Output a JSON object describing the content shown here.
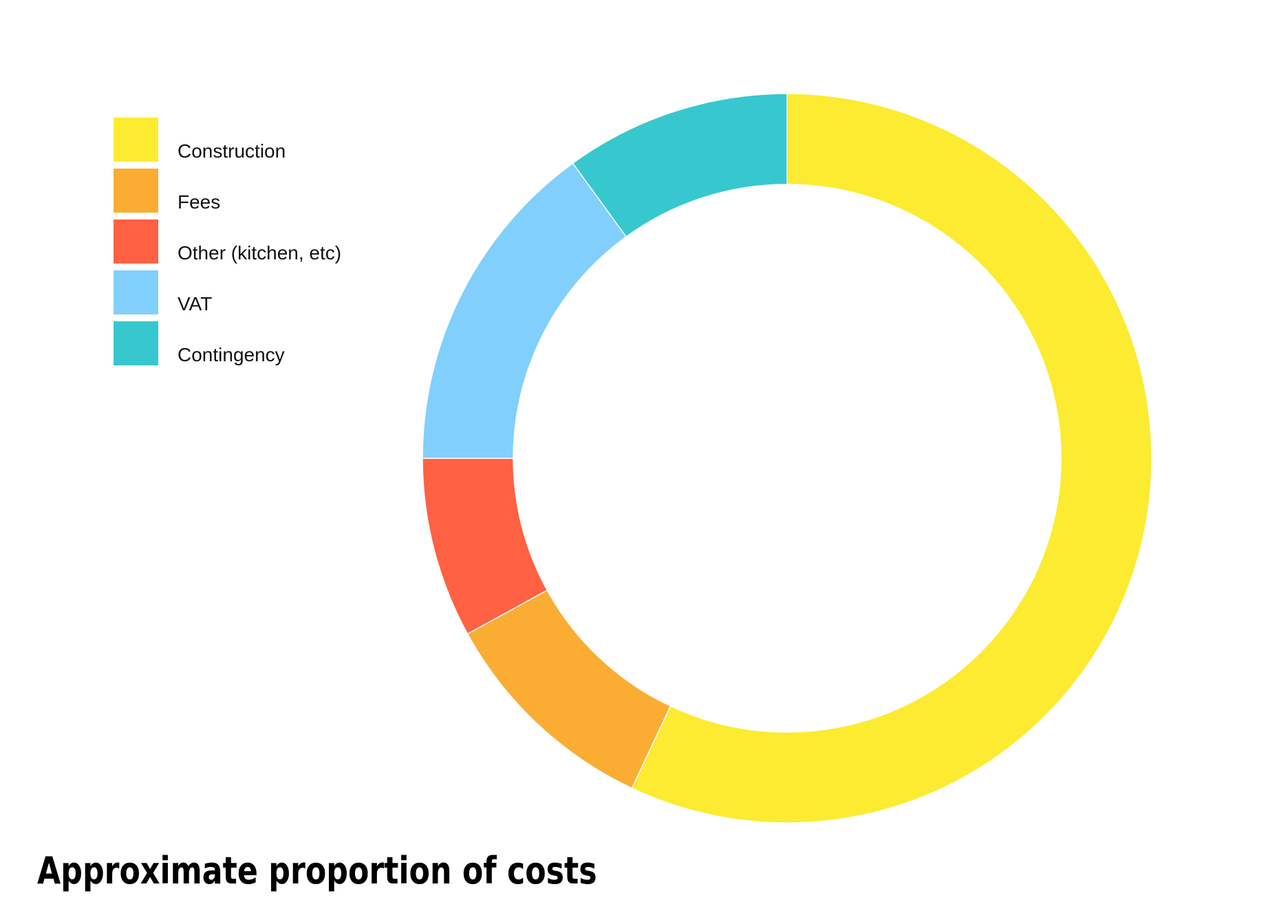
{
  "chart_data": {
    "type": "pie",
    "subtype": "donut",
    "title": "Approximate proportion of costs",
    "categories": [
      "Construction",
      "Fees",
      "Other (kitchen, etc)",
      "VAT",
      "Contingency"
    ],
    "values": [
      57,
      10,
      8,
      15,
      10
    ],
    "unit": "percent (estimated from arc angles)",
    "colors": [
      "#FCEB31",
      "#FBAC33",
      "#FF6142",
      "#80CFFC",
      "#36C8CE"
    ],
    "start_angle": "12 o'clock",
    "direction": "clockwise",
    "legend_position": "top-left",
    "grid": false,
    "xlabel": "",
    "ylabel": ""
  },
  "title": "Approximate proportion of costs",
  "legend": [
    {
      "label": "Construction",
      "color": "#FCEB31"
    },
    {
      "label": "Fees",
      "color": "#FBAC33"
    },
    {
      "label": "Other (kitchen, etc)",
      "color": "#FF6142"
    },
    {
      "label": "VAT",
      "color": "#80CFFC"
    },
    {
      "label": "Contingency",
      "color": "#36C8CE"
    }
  ]
}
